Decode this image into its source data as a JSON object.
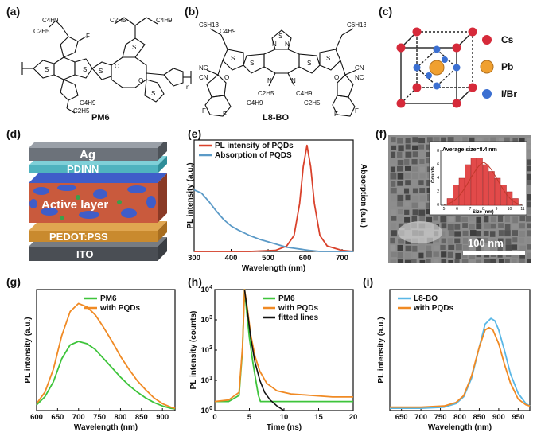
{
  "panels": {
    "a": {
      "label": "(a)",
      "title": "PM6",
      "atoms": [
        "C4H9",
        "C2H5",
        "F",
        "S",
        "S",
        "S",
        "S",
        "S",
        "O",
        "O",
        "C4H9",
        "C2H5",
        "C2H5",
        "C4H9",
        "n"
      ]
    },
    "b": {
      "label": "(b)",
      "title": "L8-BO",
      "atoms": [
        "C6H13",
        "C4H9",
        "S",
        "N",
        "N",
        "S",
        "S",
        "S",
        "S",
        "N",
        "N",
        "NC",
        "CN",
        "O",
        "O",
        "CN",
        "NC",
        "F",
        "F",
        "F",
        "F",
        "C2H5",
        "C4H9",
        "C4H9",
        "C2H5",
        "C6H13"
      ]
    },
    "c": {
      "label": "(c)",
      "legend": [
        {
          "name": "Cs",
          "color": "#d62a3a"
        },
        {
          "name": "Pb",
          "color": "#f0a030"
        },
        {
          "name": "I/Br",
          "color": "#3b6fd1"
        }
      ]
    },
    "d": {
      "label": "(d)",
      "layers": [
        {
          "name": "Ag",
          "color": "#7a8088"
        },
        {
          "name": "PDINN",
          "color": "#4fb3bf"
        },
        {
          "name": "Active layer",
          "color": "#c95a3d"
        },
        {
          "name": "PEDOT:PSS",
          "color": "#c98a2e"
        },
        {
          "name": "ITO",
          "color": "#555a60"
        }
      ]
    },
    "e": {
      "label": "(e)"
    },
    "f": {
      "label": "(f)",
      "scalebar": "100 nm",
      "inset_title": "Average size=8.4 nm",
      "inset_xlabel": "Size (nm)",
      "inset_ylabel": "Counts",
      "inset_xticks": [
        "5",
        "6",
        "7",
        "8",
        "9",
        "10",
        "11"
      ],
      "inset_yticks": [
        "0",
        "2",
        "4",
        "6",
        "8"
      ]
    },
    "g": {
      "label": "(g)"
    },
    "h": {
      "label": "(h)"
    },
    "i": {
      "label": "(i)"
    }
  },
  "chart_data": [
    {
      "panel": "e",
      "type": "line",
      "xlabel": "Wavelength (nm)",
      "ylabel": "PL intensity (a.u.)",
      "ylabel2": "Absorption (a.u.)",
      "xlim": [
        300,
        730
      ],
      "xticks": [
        300,
        400,
        500,
        600,
        700
      ],
      "series": [
        {
          "name": "PL intensity of PQDs",
          "color": "#d9412b",
          "x": [
            300,
            450,
            520,
            550,
            570,
            585,
            595,
            605,
            615,
            625,
            640,
            660,
            700,
            730
          ],
          "y": [
            0.0,
            0.0,
            0.01,
            0.05,
            0.15,
            0.45,
            0.8,
            1.0,
            0.8,
            0.45,
            0.15,
            0.05,
            0.01,
            0.0
          ]
        },
        {
          "name": "Absorption  of PQDS",
          "color": "#5b9ac7",
          "x": [
            300,
            320,
            340,
            360,
            380,
            400,
            420,
            450,
            480,
            510,
            530,
            550,
            570,
            590,
            610,
            640,
            680,
            730
          ],
          "y": [
            0.58,
            0.55,
            0.47,
            0.38,
            0.3,
            0.24,
            0.2,
            0.15,
            0.11,
            0.08,
            0.06,
            0.04,
            0.03,
            0.02,
            0.01,
            0.0,
            0.0,
            0.0
          ]
        }
      ]
    },
    {
      "panel": "g",
      "type": "line",
      "xlabel": "Wavelength (nm)",
      "ylabel": "PL intensity (a.u.)",
      "xlim": [
        600,
        930
      ],
      "xticks": [
        600,
        650,
        700,
        750,
        800,
        850,
        900
      ],
      "series": [
        {
          "name": "PM6",
          "color": "#3ec43b",
          "x": [
            600,
            620,
            640,
            660,
            680,
            700,
            720,
            740,
            760,
            780,
            800,
            820,
            840,
            860,
            880,
            900,
            920,
            930
          ],
          "y": [
            0.05,
            0.12,
            0.25,
            0.45,
            0.57,
            0.6,
            0.58,
            0.53,
            0.45,
            0.37,
            0.29,
            0.22,
            0.16,
            0.11,
            0.07,
            0.04,
            0.02,
            0.015
          ]
        },
        {
          "name": "with PQDs",
          "color": "#f08a24",
          "x": [
            600,
            620,
            640,
            660,
            680,
            700,
            720,
            740,
            760,
            780,
            800,
            820,
            840,
            860,
            880,
            900,
            920,
            930
          ],
          "y": [
            0.06,
            0.16,
            0.36,
            0.65,
            0.86,
            0.93,
            0.9,
            0.83,
            0.72,
            0.6,
            0.47,
            0.36,
            0.26,
            0.18,
            0.11,
            0.06,
            0.03,
            0.02
          ]
        }
      ]
    },
    {
      "panel": "h",
      "type": "line",
      "xlabel": "Time (ns)",
      "ylabel": "PL intensity (counts)",
      "xlim": [
        0,
        20
      ],
      "ylim_log10": [
        0,
        4
      ],
      "xticks": [
        0,
        5,
        10,
        15,
        20
      ],
      "yticks": [
        "10^0",
        "10^1",
        "10^2",
        "10^3",
        "10^4"
      ],
      "series": [
        {
          "name": "PM6",
          "color": "#3ec43b",
          "x": [
            0,
            2,
            3.5,
            4.0,
            4.3,
            4.6,
            5.0,
            5.5,
            6.0,
            6.3,
            6.6,
            7,
            10,
            15,
            20
          ],
          "log_y": [
            0.3,
            0.3,
            0.5,
            2.0,
            4.0,
            3.3,
            2.4,
            1.6,
            0.9,
            0.5,
            0.3,
            0.3,
            0.3,
            0.3,
            0.3
          ]
        },
        {
          "name": "with PQDs",
          "color": "#f08a24",
          "x": [
            0,
            2,
            3.5,
            4.0,
            4.3,
            4.7,
            5.2,
            5.8,
            6.5,
            7.5,
            9,
            11,
            14,
            17,
            20
          ],
          "log_y": [
            0.3,
            0.35,
            0.6,
            2.1,
            4.0,
            3.4,
            2.5,
            1.8,
            1.3,
            0.9,
            0.65,
            0.55,
            0.5,
            0.45,
            0.45
          ]
        },
        {
          "name": "fitted lines",
          "color": "#111111",
          "x": [
            4.3,
            4.7,
            5.2,
            5.8,
            6.5,
            7.2,
            8,
            9,
            10
          ],
          "log_y": [
            4.0,
            3.3,
            2.4,
            1.6,
            1.0,
            0.6,
            0.35,
            0.15,
            0.0
          ]
        }
      ]
    },
    {
      "panel": "i",
      "type": "line",
      "xlabel": "Wavelength (nm)",
      "ylabel": "PL intensity (a.u.)",
      "xlim": [
        620,
        980
      ],
      "xticks": [
        650,
        700,
        750,
        800,
        850,
        900,
        950
      ],
      "series": [
        {
          "name": "L8-BO",
          "color": "#59b7e6",
          "x": [
            620,
            700,
            760,
            790,
            810,
            830,
            850,
            865,
            880,
            890,
            900,
            915,
            930,
            950,
            970,
            980
          ],
          "y": [
            0.02,
            0.02,
            0.03,
            0.06,
            0.12,
            0.28,
            0.55,
            0.75,
            0.8,
            0.78,
            0.7,
            0.52,
            0.32,
            0.15,
            0.06,
            0.04
          ]
        },
        {
          "name": "with PQDs",
          "color": "#f08a24",
          "x": [
            620,
            700,
            760,
            790,
            810,
            830,
            850,
            865,
            875,
            885,
            900,
            915,
            930,
            950,
            970,
            980
          ],
          "y": [
            0.03,
            0.03,
            0.04,
            0.07,
            0.13,
            0.3,
            0.55,
            0.7,
            0.72,
            0.7,
            0.58,
            0.4,
            0.24,
            0.1,
            0.05,
            0.04
          ]
        }
      ]
    }
  ]
}
